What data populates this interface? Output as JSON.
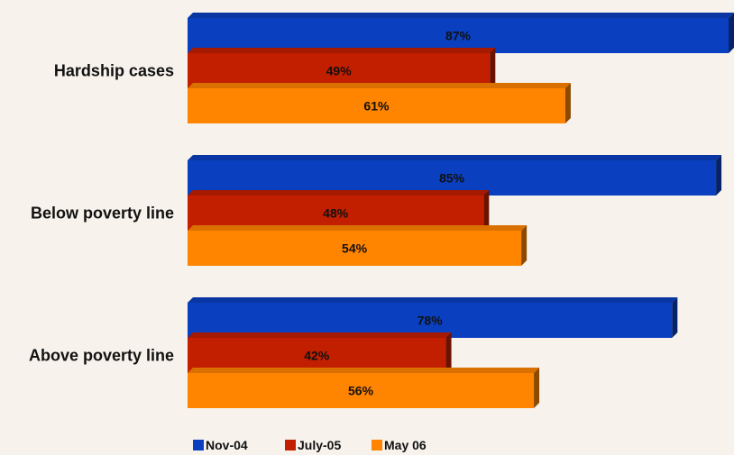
{
  "chart_data": {
    "type": "bar",
    "orientation": "horizontal",
    "three_d": true,
    "categories": [
      "Hardship cases",
      "Below poverty line",
      "Above poverty line"
    ],
    "series": [
      {
        "name": "Nov-04",
        "values": [
          87,
          85,
          78
        ],
        "labels": [
          "87%",
          "85%",
          "78%"
        ],
        "color": "#0a3fbf"
      },
      {
        "name": "July-05",
        "values": [
          49,
          48,
          42
        ],
        "labels": [
          "49%",
          "48%",
          "42%"
        ],
        "color": "#c21f00"
      },
      {
        "name": "May 06",
        "values": [
          61,
          54,
          56
        ],
        "labels": [
          "61%",
          "54%",
          "56%"
        ],
        "color": "#ff8400"
      }
    ],
    "value_unit": "%",
    "xlim": [
      0,
      87
    ],
    "grid": false,
    "legend_position": "bottom"
  }
}
